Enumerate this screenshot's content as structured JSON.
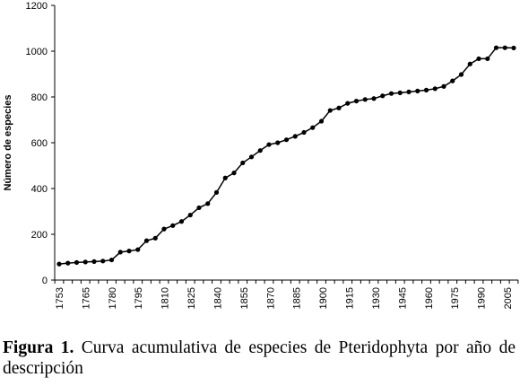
{
  "caption": {
    "label": "Figura 1.",
    "text": " Curva acumulativa de especies de Pteridophyta por año de descripción"
  },
  "chart_data": {
    "type": "line",
    "ylabel": "Número de especies",
    "xlabel": "",
    "ylim": [
      0,
      1200
    ],
    "y_ticks": [
      0,
      200,
      400,
      600,
      800,
      1000,
      1200
    ],
    "x_ticks": [
      "1753",
      "1765",
      "1780",
      "1795",
      "1810",
      "1825",
      "1840",
      "1855",
      "1870",
      "1885",
      "1900",
      "1915",
      "1930",
      "1945",
      "1960",
      "1975",
      "1990",
      "2005"
    ],
    "grid": false,
    "legend": "none",
    "series": [
      {
        "values": [
          70,
          74,
          77,
          79,
          81,
          83,
          88,
          122,
          127,
          133,
          172,
          183,
          223,
          238,
          256,
          284,
          316,
          334,
          383,
          446,
          468,
          512,
          538,
          566,
          592,
          600,
          613,
          628,
          645,
          666,
          694,
          741,
          752,
          772,
          782,
          789,
          793,
          805,
          815,
          818,
          822,
          826,
          830,
          836,
          846,
          870,
          898,
          944,
          967,
          967,
          1015,
          1015,
          1014
        ]
      }
    ]
  }
}
